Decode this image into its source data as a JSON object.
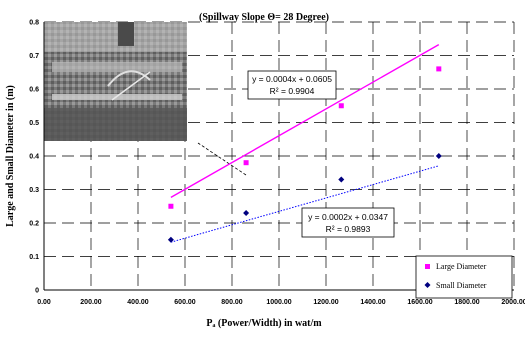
{
  "chart_data": {
    "type": "scatter",
    "title": "(Spillway Slope Θ= 28 Degree)",
    "xlabel": "Pₐ (Power/Width) in wat/m",
    "ylabel": "Large and Small Diameter in (m)",
    "xlim": [
      0,
      2000
    ],
    "ylim": [
      0,
      0.8
    ],
    "x_ticks": [
      "0.00",
      "200.00",
      "400.00",
      "600.00",
      "800.00",
      "1000.00",
      "1200.00",
      "1400.00",
      "1600.00",
      "1800.00",
      "2000.00"
    ],
    "y_ticks": [
      "0",
      "0.1",
      "0.2",
      "0.3",
      "0.4",
      "0.5",
      "0.6",
      "0.7",
      "0.8"
    ],
    "grid": true,
    "legend_position": "bottom-right",
    "series": [
      {
        "name": "Large Diameter",
        "marker": "square",
        "color": "#ff00ff",
        "x": [
          540,
          860,
          1265,
          1680
        ],
        "y": [
          0.25,
          0.38,
          0.55,
          0.66
        ],
        "trendline": {
          "slope": 0.0004,
          "intercept": 0.0605,
          "style": "solid",
          "color": "#ff00ff"
        },
        "equation": "y = 0.0004x + 0.0605",
        "r2": "R² = 0.9904"
      },
      {
        "name": "Small Diameter",
        "marker": "diamond",
        "color": "#000080",
        "x": [
          540,
          860,
          1265,
          1680
        ],
        "y": [
          0.15,
          0.23,
          0.33,
          0.4
        ],
        "trendline": {
          "slope": 0.0002,
          "intercept": 0.0347,
          "style": "dotted",
          "color": "#0000ff"
        },
        "equation": "y = 0.0002x + 0.0347",
        "r2": "R² = 0.9893"
      }
    ]
  }
}
